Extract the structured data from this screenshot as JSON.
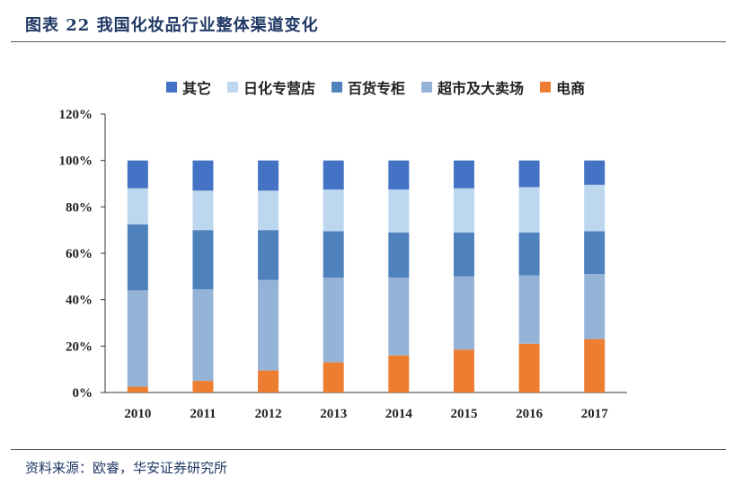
{
  "header": {
    "title": "图表 22  我国化妆品行业整体渠道变化"
  },
  "footer": {
    "source": "资料来源：欧睿，华安证券研究所"
  },
  "chart_data": {
    "type": "bar",
    "stacked": true,
    "categories": [
      "2010",
      "2011",
      "2012",
      "2013",
      "2014",
      "2015",
      "2016",
      "2017"
    ],
    "series": [
      {
        "name": "电商",
        "color": "#ed7d31",
        "values": [
          2.5,
          5,
          9.5,
          13,
          16,
          18.5,
          21,
          23
        ]
      },
      {
        "name": "超市及大卖场",
        "color": "#95b3d7",
        "values": [
          41.5,
          39.5,
          39,
          36.5,
          33.5,
          31.5,
          29.5,
          28
        ]
      },
      {
        "name": "百货专柜",
        "color": "#4f81bd",
        "values": [
          28.5,
          25.5,
          21.5,
          20,
          19.5,
          19,
          18.5,
          18.5
        ]
      },
      {
        "name": "日化专营店",
        "color": "#bdd7ee",
        "values": [
          15.5,
          17,
          17,
          18,
          18.5,
          19,
          19.5,
          20
        ]
      },
      {
        "name": "其它",
        "color": "#4472c4",
        "values": [
          12,
          13,
          13,
          12.5,
          12.5,
          12,
          11.5,
          10.5
        ]
      }
    ],
    "legend_order": [
      "其它",
      "日化专营店",
      "百货专柜",
      "超市及大卖场",
      "电商"
    ],
    "yticks": [
      "0%",
      "20%",
      "40%",
      "60%",
      "80%",
      "100%",
      "120%"
    ],
    "ylim": [
      0,
      120
    ],
    "legend_position": "top",
    "grid": false
  }
}
